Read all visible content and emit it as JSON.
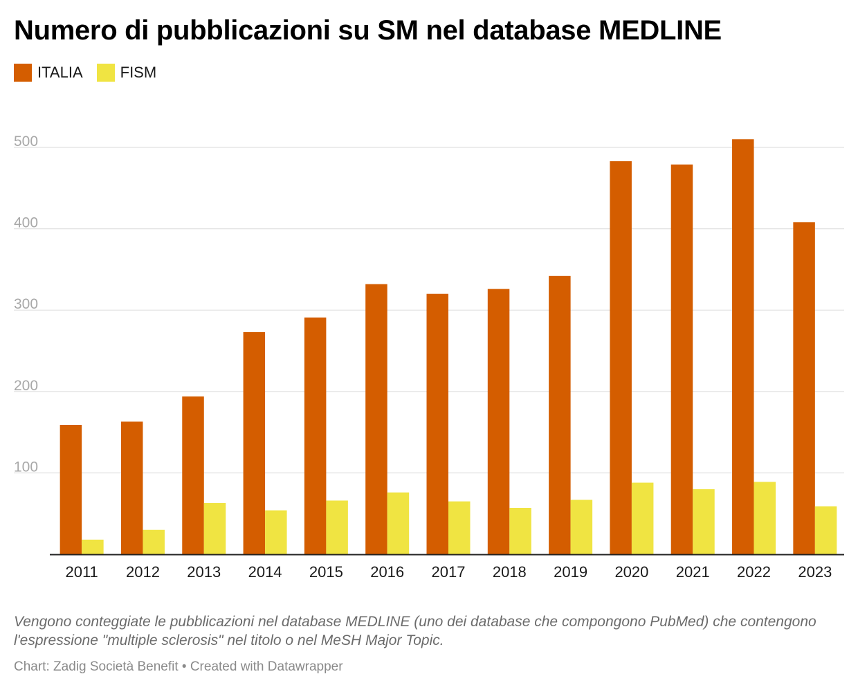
{
  "title": "Numero di pubblicazioni su SM nel database MEDLINE",
  "legend": [
    {
      "name": "ITALIA",
      "color": "#d45d00"
    },
    {
      "name": "FISM",
      "color": "#f0e442"
    }
  ],
  "chart_data": {
    "type": "bar",
    "title": "Numero di pubblicazioni su SM nel database MEDLINE",
    "xlabel": "",
    "ylabel": "",
    "ylim": [
      0,
      500
    ],
    "yticks": [
      100,
      200,
      300,
      400,
      500
    ],
    "grid": true,
    "legend_position": "top-left",
    "categories": [
      "2011",
      "2012",
      "2013",
      "2014",
      "2015",
      "2016",
      "2017",
      "2018",
      "2019",
      "2020",
      "2021",
      "2022",
      "2023"
    ],
    "series": [
      {
        "name": "ITALIA",
        "color": "#d45d00",
        "values": [
          159,
          163,
          194,
          273,
          291,
          332,
          320,
          326,
          342,
          483,
          479,
          510,
          408
        ]
      },
      {
        "name": "FISM",
        "color": "#f0e442",
        "values": [
          18,
          30,
          63,
          54,
          66,
          76,
          65,
          57,
          67,
          88,
          80,
          89,
          59
        ]
      }
    ]
  },
  "note": "Vengono conteggiate le pubblicazioni nel database MEDLINE (uno dei database che compongono PubMed) che contengono l'espressione \"multiple sclerosis\" nel titolo o nel MeSH Major Topic.",
  "credit": "Chart: Zadig Società Benefit • Created with Datawrapper"
}
